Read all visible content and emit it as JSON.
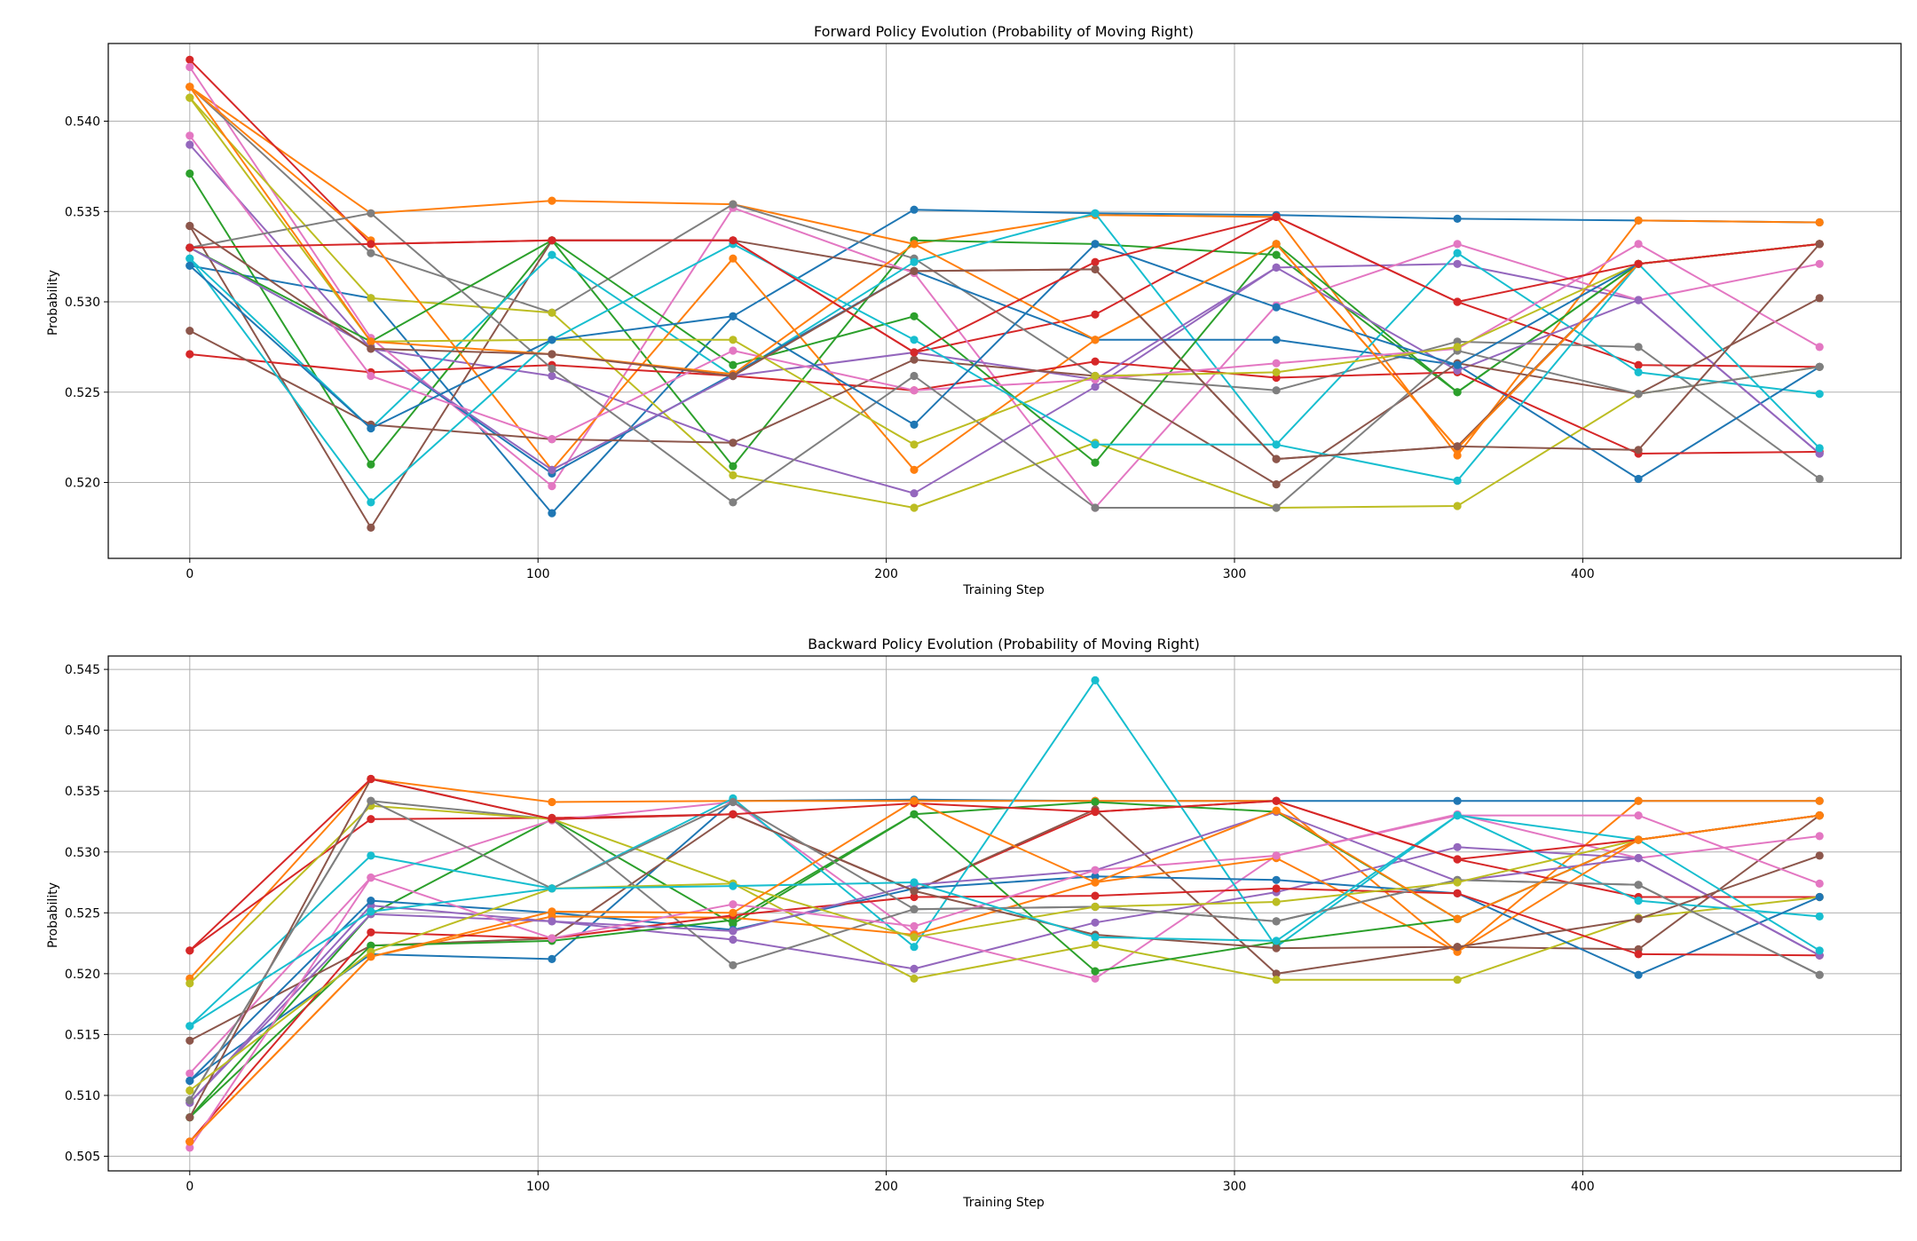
{
  "chart_data": [
    {
      "type": "line",
      "title": "Forward Policy Evolution (Probability of Moving Right)",
      "xlabel": "Training Step",
      "ylabel": "Probability",
      "xlim": [
        -23.4,
        491.4
      ],
      "ylim": [
        0.5158,
        0.5443
      ],
      "xticks": [
        0,
        100,
        200,
        300,
        400
      ],
      "yticks": [
        0.52,
        0.525,
        0.53,
        0.535,
        0.54
      ],
      "ytick_labels": [
        "0.520",
        "0.525",
        "0.530",
        "0.535",
        "0.540"
      ],
      "grid": true,
      "x": [
        0,
        52,
        104,
        156,
        208,
        260,
        312,
        364,
        416,
        468
      ],
      "series": [
        {
          "color": "#1f77b4",
          "values": [
            0.532,
            0.5302,
            0.5183,
            0.5292,
            0.5351,
            0.5349,
            0.5348,
            0.5346,
            0.5345,
            0.5344
          ]
        },
        {
          "color": "#ff7f0e",
          "values": [
            0.5419,
            0.5349,
            0.5356,
            0.5354,
            0.5332,
            0.5348,
            0.5347,
            0.5215,
            0.5345,
            0.5344
          ]
        },
        {
          "color": "#2ca02c",
          "values": [
            0.5371,
            0.521,
            0.5334,
            0.5209,
            0.5334,
            0.5332,
            0.5326,
            0.525,
            0.5321,
            0.5332
          ]
        },
        {
          "color": "#d62728",
          "values": [
            0.5434,
            0.5332,
            0.5334,
            0.5334,
            0.5272,
            0.5293,
            0.5347,
            0.53,
            0.5265,
            0.5264
          ]
        },
        {
          "color": "#9467bd",
          "values": [
            0.5387,
            0.5274,
            0.5259,
            0.5222,
            0.5194,
            0.5253,
            0.5319,
            0.5321,
            0.5301,
            0.5216
          ]
        },
        {
          "color": "#8c564b",
          "values": [
            0.5342,
            0.5175,
            0.5334,
            0.5334,
            0.5317,
            0.5318,
            0.5213,
            0.522,
            0.5321,
            0.5332
          ]
        },
        {
          "color": "#e377c2",
          "values": [
            0.543,
            0.528,
            0.5198,
            0.5352,
            0.5316,
            0.5186,
            0.5298,
            0.5332,
            0.5301,
            0.5321
          ]
        },
        {
          "color": "#7f7f7f",
          "values": [
            0.5419,
            0.5327,
            0.5294,
            0.5354,
            0.5324,
            0.5259,
            0.5251,
            0.5278,
            0.5275,
            0.5202
          ]
        },
        {
          "color": "#bcbd22",
          "values": [
            0.5413,
            0.5302,
            0.5294,
            0.5204,
            0.5186,
            0.5222,
            0.5186,
            0.5187,
            0.5249,
            0.5264
          ]
        },
        {
          "color": "#17becf",
          "values": [
            0.5324,
            0.523,
            0.5326,
            0.5259,
            0.5322,
            0.5349,
            0.5221,
            0.5327,
            0.5261,
            0.5249
          ]
        },
        {
          "color": "#1f77b4",
          "values": [
            0.533,
            0.5275,
            0.5205,
            0.526,
            0.5317,
            0.5279,
            0.5279,
            0.5265,
            0.5202,
            0.5264
          ]
        },
        {
          "color": "#ff7f0e",
          "values": [
            0.5419,
            0.5334,
            0.5207,
            0.5324,
            0.5207,
            0.5279,
            0.5332,
            0.5219,
            0.5321,
            0.5332
          ]
        },
        {
          "color": "#2ca02c",
          "values": [
            0.533,
            0.5278,
            0.5334,
            0.5265,
            0.5292,
            0.5211,
            0.5332,
            0.525,
            0.5321,
            0.5332
          ]
        },
        {
          "color": "#d62728",
          "values": [
            0.5271,
            0.5261,
            0.5265,
            0.5259,
            0.5251,
            0.5267,
            0.5258,
            0.5261,
            0.5216,
            0.5217
          ]
        },
        {
          "color": "#9467bd",
          "values": [
            0.533,
            0.5275,
            0.5207,
            0.5259,
            0.5272,
            0.5257,
            0.5319,
            0.5262,
            0.5301,
            0.5216
          ]
        },
        {
          "color": "#8c564b",
          "values": [
            0.5284,
            0.5232,
            0.5224,
            0.5222,
            0.5268,
            0.5259,
            0.5199,
            0.5266,
            0.5249,
            0.5302
          ]
        },
        {
          "color": "#e377c2",
          "values": [
            0.5392,
            0.5259,
            0.5224,
            0.5273,
            0.5251,
            0.5257,
            0.5266,
            0.5274,
            0.5332,
            0.5275
          ]
        },
        {
          "color": "#7f7f7f",
          "values": [
            0.533,
            0.5349,
            0.5263,
            0.5189,
            0.5259,
            0.5186,
            0.5186,
            0.5273,
            0.5249,
            0.5264
          ]
        },
        {
          "color": "#bcbd22",
          "values": [
            0.5413,
            0.5278,
            0.5279,
            0.5279,
            0.5221,
            0.5259,
            0.5261,
            0.5275,
            0.5321,
            0.5332
          ]
        },
        {
          "color": "#17becf",
          "values": [
            0.5324,
            0.5189,
            0.5279,
            0.5332,
            0.5279,
            0.5221,
            0.5221,
            0.5201,
            0.5321,
            0.5219
          ]
        },
        {
          "color": "#1f77b4",
          "values": [
            0.532,
            0.523,
            0.5279,
            0.5292,
            0.5232,
            0.5332,
            0.5297,
            0.5265,
            0.5321,
            0.5332
          ]
        },
        {
          "color": "#ff7f0e",
          "values": [
            0.5419,
            0.5278,
            0.5271,
            0.526,
            0.5332,
            0.5279,
            0.5332,
            0.5219,
            0.5321,
            0.5332
          ]
        },
        {
          "color": "#d62728",
          "values": [
            0.533,
            0.5332,
            0.5334,
            0.5334,
            0.5272,
            0.5322,
            0.5347,
            0.53,
            0.5321,
            0.5332
          ]
        },
        {
          "color": "#8c564b",
          "values": [
            0.5342,
            0.5274,
            0.5271,
            0.5259,
            0.5317,
            0.5318,
            0.5213,
            0.522,
            0.5218,
            0.5332
          ]
        }
      ]
    },
    {
      "type": "line",
      "title": "Backward Policy Evolution (Probability of Moving Right)",
      "xlabel": "Training Step",
      "ylabel": "Probability",
      "xlim": [
        -23.4,
        491.4
      ],
      "ylim": [
        0.5038,
        0.5461
      ],
      "xticks": [
        0,
        100,
        200,
        300,
        400
      ],
      "yticks": [
        0.505,
        0.51,
        0.515,
        0.52,
        0.525,
        0.53,
        0.535,
        0.54,
        0.545
      ],
      "ytick_labels": [
        "0.505",
        "0.510",
        "0.515",
        "0.520",
        "0.525",
        "0.530",
        "0.535",
        "0.540",
        "0.545"
      ],
      "grid": true,
      "x": [
        0,
        52,
        104,
        156,
        208,
        260,
        312,
        364,
        416,
        468
      ],
      "series": [
        {
          "color": "#1f77b4",
          "values": [
            0.5112,
            0.5216,
            0.5212,
            0.5342,
            0.5343,
            0.5342,
            0.5342,
            0.5342,
            0.5342,
            0.5342
          ]
        },
        {
          "color": "#ff7f0e",
          "values": [
            0.5196,
            0.536,
            0.5341,
            0.5342,
            0.5342,
            0.5342,
            0.5342,
            0.5218,
            0.5342,
            0.5342
          ]
        },
        {
          "color": "#2ca02c",
          "values": [
            0.5082,
            0.5249,
            0.5327,
            0.5241,
            0.5331,
            0.5341,
            0.5333,
            0.5245,
            0.531,
            0.533
          ]
        },
        {
          "color": "#d62728",
          "values": [
            0.5219,
            0.5327,
            0.5328,
            0.5331,
            0.5268,
            0.5333,
            0.5342,
            0.5294,
            0.5263,
            0.5263
          ]
        },
        {
          "color": "#9467bd",
          "values": [
            0.5094,
            0.5256,
            0.5243,
            0.5228,
            0.5204,
            0.5242,
            0.5267,
            0.5304,
            0.5295,
            0.5215
          ]
        },
        {
          "color": "#8c564b",
          "values": [
            0.5145,
            0.5223,
            0.5229,
            0.5331,
            0.5268,
            0.5335,
            0.52,
            0.5222,
            0.522,
            0.533
          ]
        },
        {
          "color": "#e377c2",
          "values": [
            0.5118,
            0.5279,
            0.5326,
            0.5341,
            0.5233,
            0.5196,
            0.5297,
            0.5331,
            0.5295,
            0.5313
          ]
        },
        {
          "color": "#7f7f7f",
          "values": [
            0.5096,
            0.5342,
            0.5327,
            0.5207,
            0.5253,
            0.5255,
            0.5243,
            0.5277,
            0.5273,
            0.5199
          ]
        },
        {
          "color": "#bcbd22",
          "values": [
            0.5192,
            0.5338,
            0.5327,
            0.5274,
            0.5196,
            0.5224,
            0.5195,
            0.5195,
            0.5246,
            0.5263
          ]
        },
        {
          "color": "#17becf",
          "values": [
            0.5157,
            0.5297,
            0.527,
            0.5344,
            0.5222,
            0.5441,
            0.5222,
            0.533,
            0.526,
            0.5247
          ]
        },
        {
          "color": "#1f77b4",
          "values": [
            0.5112,
            0.526,
            0.525,
            0.5236,
            0.527,
            0.528,
            0.5277,
            0.5266,
            0.5199,
            0.5263
          ]
        },
        {
          "color": "#ff7f0e",
          "values": [
            0.5062,
            0.5214,
            0.5247,
            0.5246,
            0.5232,
            0.5275,
            0.5295,
            0.5218,
            0.531,
            0.533
          ]
        },
        {
          "color": "#2ca02c",
          "values": [
            0.5082,
            0.5223,
            0.5227,
            0.5244,
            0.5331,
            0.5202,
            0.5226,
            0.5245,
            0.531,
            0.533
          ]
        },
        {
          "color": "#d62728",
          "values": [
            0.5062,
            0.5234,
            0.5229,
            0.5248,
            0.5263,
            0.5264,
            0.527,
            0.5266,
            0.5216,
            0.5215
          ]
        },
        {
          "color": "#9467bd",
          "values": [
            0.5094,
            0.5249,
            0.5243,
            0.5235,
            0.5273,
            0.5285,
            0.5333,
            0.5276,
            0.5295,
            0.5215
          ]
        },
        {
          "color": "#8c564b",
          "values": [
            0.5082,
            0.536,
            0.5327,
            0.5331,
            0.5268,
            0.5232,
            0.5221,
            0.5222,
            0.5245,
            0.5297
          ]
        },
        {
          "color": "#e377c2",
          "values": [
            0.5057,
            0.5279,
            0.5229,
            0.5257,
            0.5239,
            0.5285,
            0.5297,
            0.533,
            0.533,
            0.5274
          ]
        },
        {
          "color": "#7f7f7f",
          "values": [
            0.5096,
            0.5342,
            0.527,
            0.5341,
            0.5253,
            0.5255,
            0.5243,
            0.5277,
            0.5273,
            0.5199
          ]
        },
        {
          "color": "#bcbd22",
          "values": [
            0.5104,
            0.5218,
            0.527,
            0.5274,
            0.523,
            0.5255,
            0.5259,
            0.5275,
            0.531,
            0.533
          ]
        },
        {
          "color": "#17becf",
          "values": [
            0.5157,
            0.5251,
            0.527,
            0.5272,
            0.5275,
            0.523,
            0.5227,
            0.533,
            0.531,
            0.5219
          ]
        },
        {
          "color": "#d62728",
          "values": [
            0.5219,
            0.536,
            0.5327,
            0.5331,
            0.534,
            0.5333,
            0.5342,
            0.5294,
            0.531,
            0.533
          ]
        },
        {
          "color": "#ff7f0e",
          "values": [
            0.5062,
            0.5214,
            0.5251,
            0.525,
            0.5342,
            0.5275,
            0.5334,
            0.5245,
            0.531,
            0.533
          ]
        }
      ]
    }
  ]
}
